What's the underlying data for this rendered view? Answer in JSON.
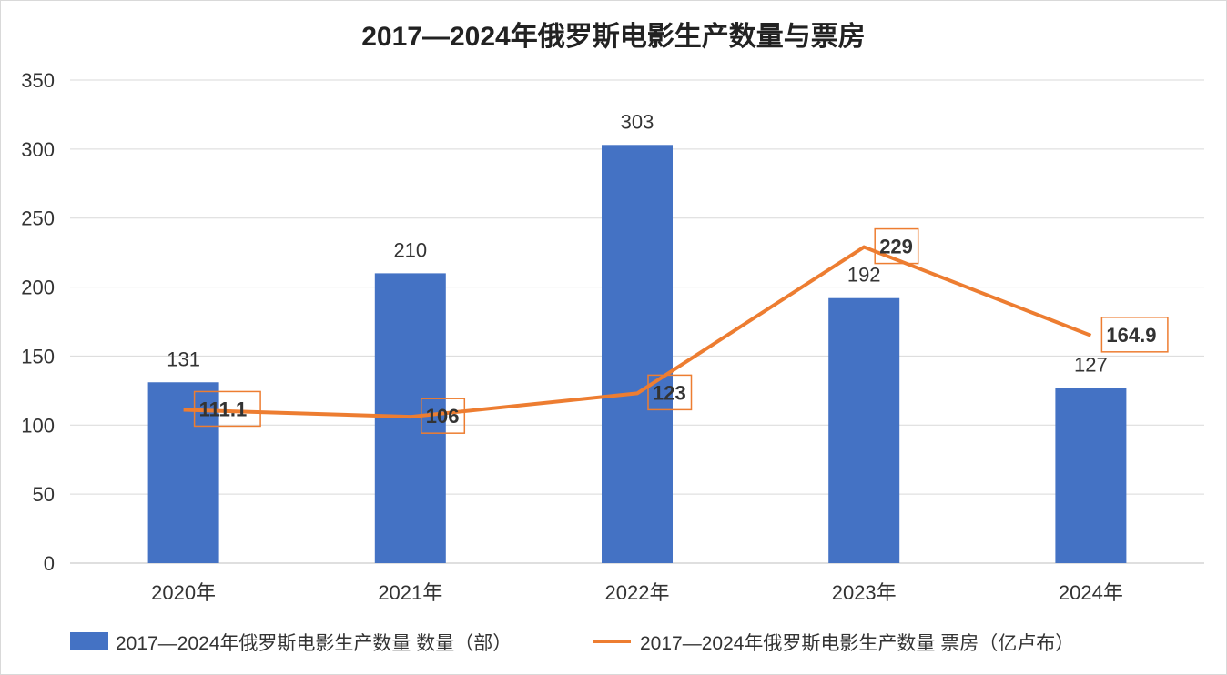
{
  "chart_data": {
    "type": "bar",
    "title": "2017—2024年俄罗斯电影生产数量与票房",
    "categories": [
      "2020年",
      "2021年",
      "2022年",
      "2023年",
      "2024年"
    ],
    "ylim": [
      0,
      350
    ],
    "yticks": [
      0,
      50,
      100,
      150,
      200,
      250,
      300,
      350
    ],
    "grid": true,
    "legend_position": "bottom",
    "series": [
      {
        "name": "2017—2024年俄罗斯电影生产数量 数量（部）",
        "type": "bar",
        "color": "#4472C4",
        "values": [
          131,
          210,
          303,
          192,
          127
        ],
        "labels": [
          "131",
          "210",
          "303",
          "192",
          "127"
        ]
      },
      {
        "name": "2017—2024年俄罗斯电影生产数量 票房（亿卢布）",
        "type": "line",
        "color": "#ED7D31",
        "values": [
          111.1,
          106,
          123,
          229,
          164.9
        ],
        "labels": [
          "111.1",
          "106",
          "123",
          "229",
          "164.9"
        ]
      }
    ]
  }
}
